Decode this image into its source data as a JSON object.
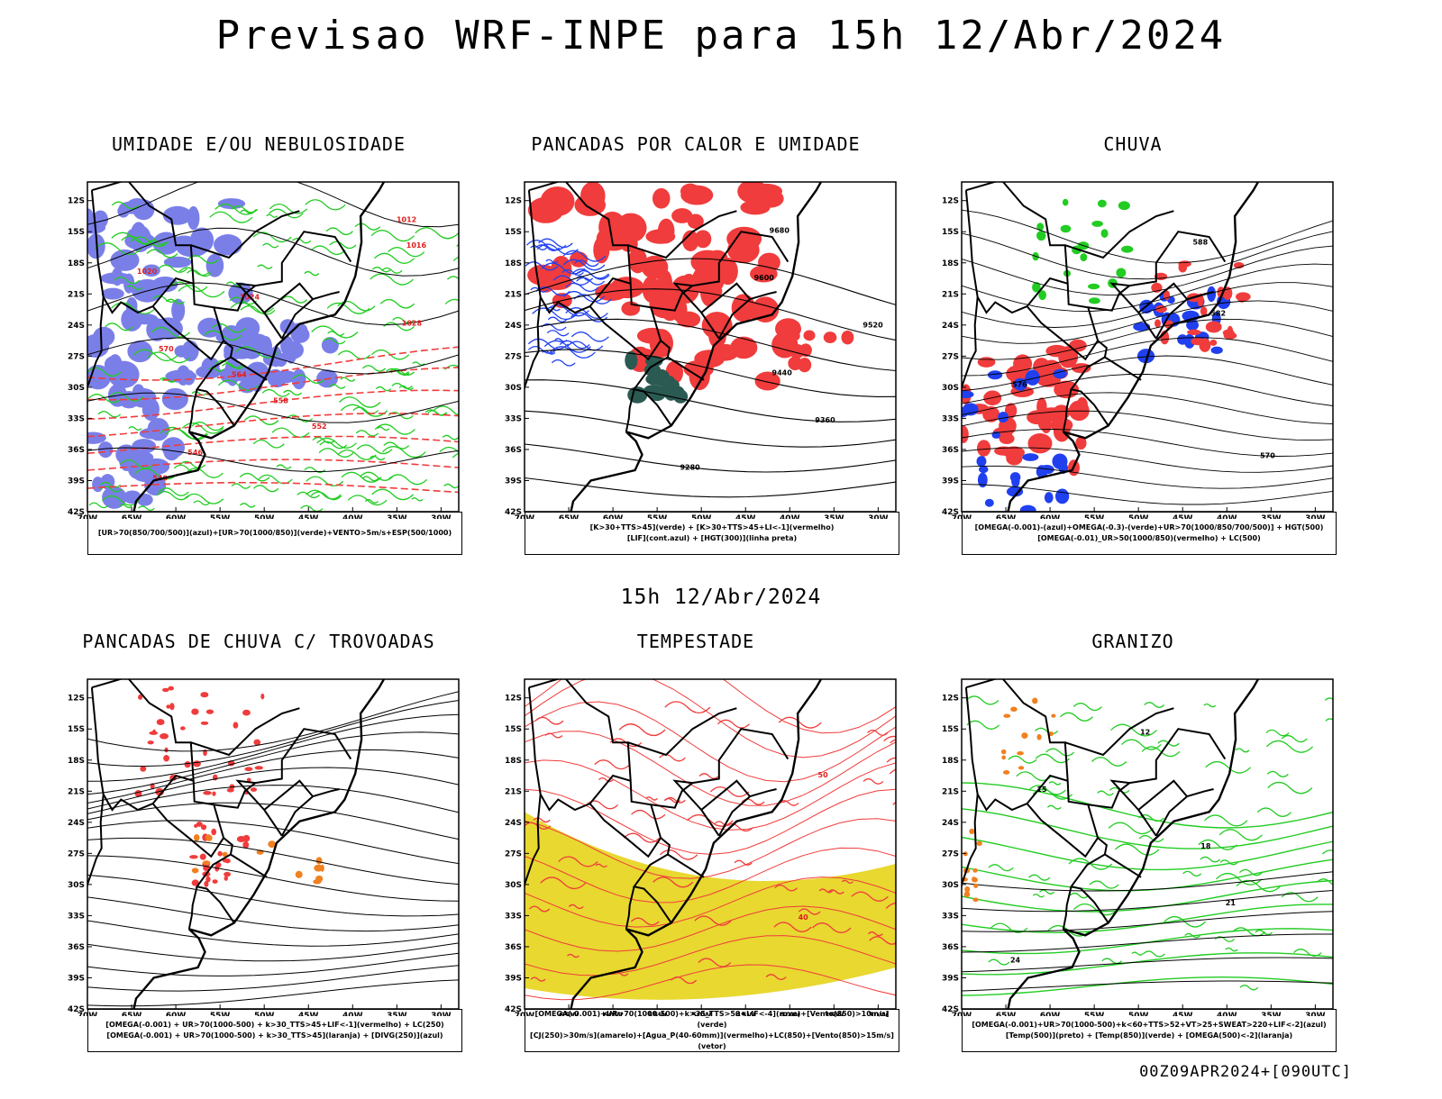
{
  "title": "Previsao WRF-INPE  para 15h 12/Abr/2024",
  "mid_title": "15h 12/Abr/2024",
  "footer": "00Z09APR2024+[090UTC]",
  "lat_ticks": [
    "12S",
    "15S",
    "18S",
    "21S",
    "24S",
    "27S",
    "30S",
    "33S",
    "36S",
    "39S",
    "42S"
  ],
  "lon_ticks": [
    "70W",
    "65W",
    "60W",
    "55W",
    "50W",
    "45W",
    "40W",
    "35W",
    "30W"
  ],
  "colors": {
    "blue": "#7a7fe8",
    "green": "#22cc22",
    "red": "#f03c3c",
    "yellow": "#e8d830",
    "darkteal": "#2a5a52",
    "orange": "#f08020"
  },
  "panels": [
    {
      "id": "umidade",
      "title": "UMIDADE E/OU NEBULOSIDADE",
      "legend": [
        "[UR>70(850/700/500)](azul)+[UR>70(1000/850)](verde)+VENTO>5m/s+ESP(500/1000)"
      ],
      "contour_labels": [
        "1012",
        "1016",
        "1020",
        "1024",
        "1028",
        "570",
        "564",
        "558",
        "552",
        "546",
        "540"
      ]
    },
    {
      "id": "pancadas_calor",
      "title": "PANCADAS POR CALOR E UMIDADE",
      "legend": [
        "[K>30+TTS>45](verde) + [K>30+TTS>45+LI<-1](vermelho)",
        "[LIF](cont.azul) + [HGT(300)](linha preta)"
      ],
      "contour_labels": [
        "9680",
        "9600",
        "9520",
        "9440",
        "9360",
        "9280"
      ]
    },
    {
      "id": "chuva",
      "title": "CHUVA",
      "legend": [
        "[OMEGA(-0.001)-(azul)+OMEGA(-0.3)-(verde)+UR>70(1000/850/700/500)] + HGT(500)",
        "[OMEGA(-0.01)_UR>50(1000/850)(vermelho) + LC(500)"
      ],
      "contour_labels": [
        "588",
        "582",
        "576",
        "570"
      ]
    },
    {
      "id": "pancadas_trovoadas",
      "title": "PANCADAS DE CHUVA C/ TROVOADAS",
      "legend": [
        "[OMEGA(-0.001) + UR>70(1000-500) + k>30_TTS>45+LIF<-1](vermelho) + LC(250)",
        "[OMEGA(-0.001) + UR>70(1000-500) + k>30_TTS>45](laranja) + [DIVG(250)](azul)"
      ],
      "contour_labels": []
    },
    {
      "id": "tempestade",
      "title": "TEMPESTADE",
      "legend": [
        "[OMEGA(-0.001)+UR>70(1000-500)+k>35_TTS>50+LIF<-4](roxo)+[Vento(850)>10m/s](verde)",
        "[CJ(250)>30m/s](amarelo)+[Agua_P(40-60mm)](vermelho)+LC(850)+[Vento(850)>15m/s](vetor)"
      ],
      "contour_labels": [
        "50",
        "40"
      ]
    },
    {
      "id": "granizo",
      "title": "GRANIZO",
      "legend": [
        "[OMEGA(-0.001)+UR>70(1000-500)+k<60+TTS>52+VT>25+SWEAT>220+LIF<-2](azul)",
        "[Temp(500)](preto) + [Temp(850)](verde) + [OMEGA(500)<-2](laranja)"
      ],
      "contour_labels": [
        "12",
        "15",
        "18",
        "21",
        "24"
      ]
    }
  ]
}
